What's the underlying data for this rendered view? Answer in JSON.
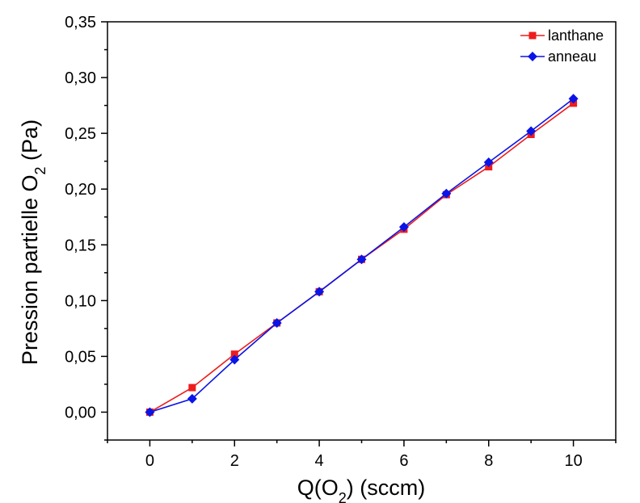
{
  "chart_data": {
    "type": "line",
    "title": "",
    "xlabel": {
      "main": "Q(O",
      "sub": "2",
      "tail": ") (sccm)"
    },
    "ylabel": {
      "main": "Pression partielle O",
      "sub": "2",
      "tail": " (Pa)"
    },
    "xlim": [
      -1,
      11
    ],
    "ylim": [
      -0.025,
      0.35
    ],
    "xticks": [
      {
        "value": 0,
        "label": "0"
      },
      {
        "value": 2,
        "label": "2"
      },
      {
        "value": 4,
        "label": "4"
      },
      {
        "value": 6,
        "label": "6"
      },
      {
        "value": 8,
        "label": "8"
      },
      {
        "value": 10,
        "label": "10"
      }
    ],
    "yticks": [
      {
        "value": 0.0,
        "label": "0,00"
      },
      {
        "value": 0.05,
        "label": "0,05"
      },
      {
        "value": 0.1,
        "label": "0,10"
      },
      {
        "value": 0.15,
        "label": "0,15"
      },
      {
        "value": 0.2,
        "label": "0,20"
      },
      {
        "value": 0.25,
        "label": "0,25"
      },
      {
        "value": 0.3,
        "label": "0,30"
      },
      {
        "value": 0.35,
        "label": "0,35"
      }
    ],
    "grid": false,
    "legend_position": "top-right",
    "series": [
      {
        "name": "lanthane",
        "color": "#ee1c1c",
        "marker": "square",
        "x": [
          0,
          1,
          2,
          3,
          4,
          5,
          6,
          7,
          8,
          9,
          10
        ],
        "y": [
          0.0,
          0.022,
          0.052,
          0.08,
          0.108,
          0.137,
          0.164,
          0.195,
          0.22,
          0.249,
          0.277
        ]
      },
      {
        "name": "anneau",
        "color": "#0a14e6",
        "marker": "diamond",
        "x": [
          0,
          1,
          2,
          3,
          4,
          5,
          6,
          7,
          8,
          9,
          10
        ],
        "y": [
          0.0,
          0.012,
          0.047,
          0.08,
          0.108,
          0.137,
          0.166,
          0.196,
          0.224,
          0.252,
          0.281
        ]
      }
    ]
  }
}
